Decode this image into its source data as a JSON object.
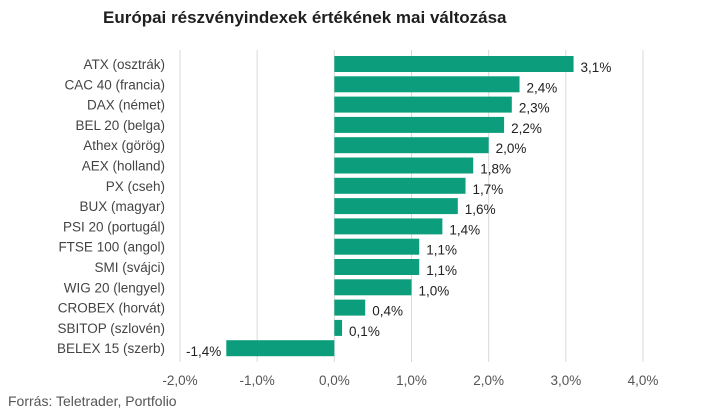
{
  "chart_data": {
    "type": "bar",
    "orientation": "horizontal",
    "title": "Európai részvényindexek értékének mai változása",
    "source": "Forrás: Teletrader, Portfolio",
    "categories": [
      "ATX (osztrák)",
      "CAC 40 (francia)",
      "DAX (német)",
      "BEL 20 (belga)",
      "Athex (görög)",
      "AEX (holland)",
      "PX (cseh)",
      "BUX (magyar)",
      "PSI 20 (portugál)",
      "FTSE 100 (angol)",
      "SMI (svájci)",
      "WIG 20 (lengyel)",
      "CROBEX (horvát)",
      "SBITOP (szlovén)",
      "BELEX 15 (szerb)"
    ],
    "values": [
      3.1,
      2.4,
      2.3,
      2.2,
      2.0,
      1.8,
      1.7,
      1.6,
      1.4,
      1.1,
      1.1,
      1.0,
      0.4,
      0.1,
      -1.4
    ],
    "value_labels": [
      "3,1%",
      "2,4%",
      "2,3%",
      "2,2%",
      "2,0%",
      "1,8%",
      "1,7%",
      "1,6%",
      "1,4%",
      "1,1%",
      "1,1%",
      "1,0%",
      "0,4%",
      "0,1%",
      "-1,4%"
    ],
    "x_ticks": [
      -2,
      -1,
      0,
      1,
      2,
      3,
      4
    ],
    "x_tick_labels": [
      "-2,0%",
      "-1,0%",
      "0,0%",
      "1,0%",
      "2,0%",
      "3,0%",
      "4,0%"
    ],
    "xlim": [
      -2,
      4
    ],
    "grid": true,
    "bar_color": "#0c9e7c"
  }
}
